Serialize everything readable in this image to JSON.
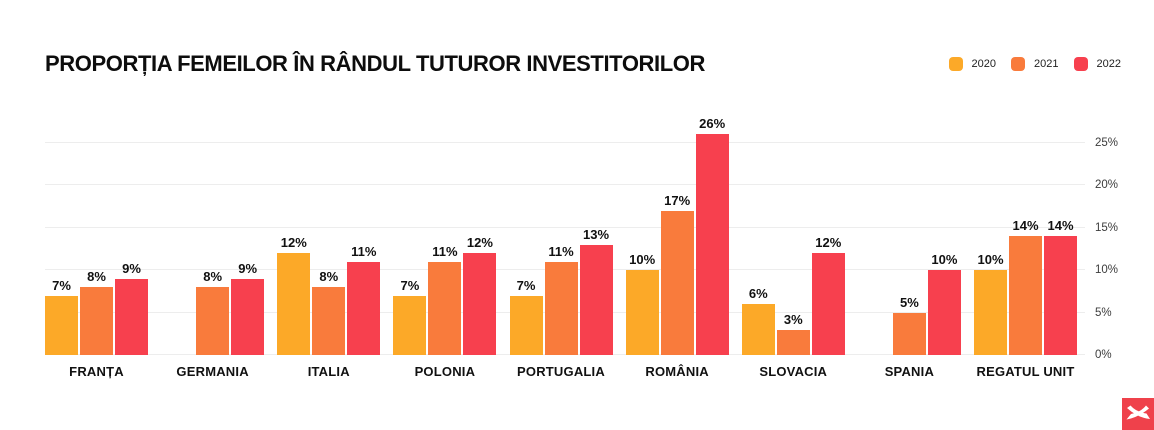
{
  "title": "PROPORȚIA FEMEILOR ÎN RÂNDUL TUTUROR INVESTITORILOR",
  "legend": [
    {
      "label": "2020",
      "color": "#FCA928"
    },
    {
      "label": "2021",
      "color": "#F97B3C"
    },
    {
      "label": "2022",
      "color": "#F7404E"
    }
  ],
  "icons": {
    "footer_logo": "xtb-x-logo"
  },
  "colors": {
    "series_2020": "#FCA928",
    "series_2021": "#F97B3C",
    "series_2022": "#F7404E",
    "gridline": "#EDEDED",
    "logo_red": "#EF414B",
    "text": "#111111"
  },
  "chart_data": {
    "type": "bar",
    "title": "PROPORȚIA FEMEILOR ÎN RÂNDUL TUTUROR INVESTITORILOR",
    "categories": [
      "FRANȚA",
      "GERMANIA",
      "ITALIA",
      "POLONIA",
      "PORTUGALIA",
      "ROMÂNIA",
      "SLOVACIA",
      "SPANIA",
      "REGATUL UNIT"
    ],
    "series": [
      {
        "name": "2020",
        "color": "#FCA928",
        "values": [
          7,
          null,
          12,
          7,
          7,
          10,
          6,
          null,
          10
        ]
      },
      {
        "name": "2021",
        "color": "#F97B3C",
        "values": [
          8,
          8,
          8,
          11,
          11,
          17,
          3,
          5,
          14
        ]
      },
      {
        "name": "2022",
        "color": "#F7404E",
        "values": [
          9,
          9,
          11,
          12,
          13,
          26,
          12,
          10,
          14
        ]
      }
    ],
    "value_suffix": "%",
    "ylabel": "",
    "xlabel": "",
    "y_ticks": [
      {
        "value": 0,
        "label": "0%"
      },
      {
        "value": 5,
        "label": "5%"
      },
      {
        "value": 10,
        "label": "10%"
      },
      {
        "value": 15,
        "label": "15%"
      },
      {
        "value": 20,
        "label": "20%"
      },
      {
        "value": 25,
        "label": "25%"
      }
    ],
    "ylim": [
      0,
      26.5
    ],
    "grid": true,
    "legend_position": "top-right",
    "axis_side": "right"
  }
}
